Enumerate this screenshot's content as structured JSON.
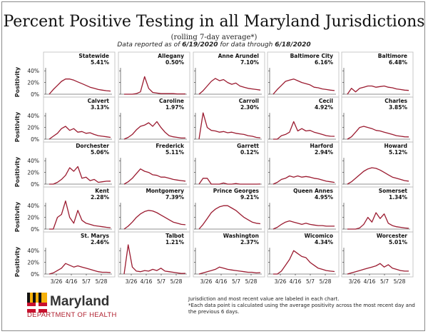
{
  "header": {
    "title": "Percent Positive Testing in all Maryland Jurisdictions",
    "subtitle": "(rolling 7-day average*)",
    "data_line_prefix": "Data reported as of ",
    "reported_date": "6/19/2020",
    "data_line_middle": " for data through ",
    "through_date": "6/18/2020"
  },
  "logo": {
    "word": "Maryland",
    "department": "DEPARTMENT OF HEALTH"
  },
  "footnote": {
    "line1": "Jurisdiction and most recent value are labeled in each chart.",
    "line2": "*Each data point is calculated using the average positivity across the most recent day and the previous 6 days."
  },
  "colors": {
    "line": "#9b1b30",
    "axis": "#222222"
  },
  "chart_data": {
    "type": "line",
    "ylabel": "Positivity",
    "y_ticks": [
      "40%",
      "20%",
      "0%"
    ],
    "ylim": [
      0,
      50
    ],
    "x_ticks": [
      "3/26",
      "4/16",
      "5/7",
      "5/28"
    ],
    "x_tick_positions": [
      0.2,
      0.34,
      0.5,
      0.66
    ],
    "series": [
      {
        "name": "Statewide",
        "latest": "5.41%",
        "values": [
          0,
          8,
          15,
          22,
          26,
          26,
          24,
          21,
          18,
          15,
          12,
          10,
          8,
          7,
          6,
          5.4
        ]
      },
      {
        "name": "Allegany",
        "latest": "0.50%",
        "values": [
          0,
          0,
          0,
          1,
          4,
          30,
          10,
          3,
          2,
          1,
          1,
          1,
          1,
          0.5,
          0.5,
          0.5
        ]
      },
      {
        "name": "Anne Arundel",
        "latest": "7.10%",
        "values": [
          0,
          6,
          14,
          22,
          27,
          23,
          25,
          20,
          17,
          19,
          14,
          12,
          10,
          9,
          8,
          7.1
        ]
      },
      {
        "name": "Baltimore City",
        "latest": "6.16%",
        "values": [
          0,
          8,
          15,
          22,
          24,
          26,
          23,
          20,
          18,
          16,
          12,
          11,
          9,
          8,
          7,
          6.2
        ]
      },
      {
        "name": "Baltimore",
        "latest": "6.48%",
        "values": [
          0,
          10,
          4,
          10,
          12,
          14,
          14,
          12,
          13,
          14,
          12,
          11,
          9,
          8,
          7,
          6.5
        ]
      },
      {
        "name": "Calvert",
        "latest": "3.13%",
        "values": [
          0,
          5,
          10,
          18,
          22,
          15,
          18,
          12,
          13,
          10,
          11,
          8,
          6,
          5,
          4,
          3.1
        ]
      },
      {
        "name": "Caroline",
        "latest": "1.97%",
        "values": [
          0,
          3,
          8,
          16,
          22,
          24,
          28,
          22,
          30,
          20,
          12,
          6,
          4,
          3,
          2,
          2
        ]
      },
      {
        "name": "Carroll",
        "latest": "2.30%",
        "values": [
          0,
          45,
          20,
          15,
          14,
          12,
          13,
          11,
          12,
          10,
          9,
          8,
          6,
          5,
          3,
          2.3
        ]
      },
      {
        "name": "Cecil",
        "latest": "4.92%",
        "values": [
          0,
          0,
          6,
          8,
          12,
          30,
          14,
          18,
          14,
          15,
          12,
          10,
          8,
          6,
          5,
          4.9
        ]
      },
      {
        "name": "Charles",
        "latest": "3.85%",
        "values": [
          0,
          4,
          12,
          20,
          22,
          20,
          18,
          15,
          14,
          12,
          10,
          8,
          6,
          5,
          4,
          3.9
        ]
      },
      {
        "name": "Dorchester",
        "latest": "5.06%",
        "values": [
          0,
          0,
          3,
          8,
          15,
          28,
          22,
          30,
          10,
          12,
          6,
          8,
          3,
          4,
          5,
          5.1
        ]
      },
      {
        "name": "Frederick",
        "latest": "5.11%",
        "values": [
          0,
          4,
          10,
          18,
          26,
          22,
          20,
          16,
          15,
          12,
          12,
          10,
          8,
          7,
          6,
          5.1
        ]
      },
      {
        "name": "Garrett",
        "latest": "0.12%",
        "values": [
          0,
          10,
          10,
          0,
          0,
          0,
          2,
          0,
          0,
          1,
          0,
          0,
          0,
          0,
          0,
          0.1
        ]
      },
      {
        "name": "Harford",
        "latest": "2.94%",
        "values": [
          0,
          3,
          8,
          10,
          14,
          12,
          14,
          12,
          13,
          12,
          10,
          9,
          7,
          5,
          4,
          2.9
        ]
      },
      {
        "name": "Howard",
        "latest": "5.12%",
        "values": [
          0,
          4,
          10,
          16,
          22,
          26,
          28,
          27,
          24,
          20,
          16,
          12,
          10,
          8,
          6,
          5.1
        ]
      },
      {
        "name": "Kent",
        "latest": "2.28%",
        "values": [
          0,
          0,
          20,
          25,
          48,
          20,
          10,
          32,
          15,
          10,
          8,
          6,
          5,
          4,
          3,
          2.3
        ]
      },
      {
        "name": "Montgomery",
        "latest": "7.39%",
        "values": [
          0,
          5,
          12,
          20,
          26,
          30,
          32,
          31,
          28,
          24,
          20,
          16,
          12,
          10,
          8,
          7.4
        ]
      },
      {
        "name": "Prince Georges",
        "latest": "9.21%",
        "values": [
          0,
          8,
          18,
          28,
          34,
          38,
          40,
          40,
          36,
          32,
          26,
          20,
          16,
          12,
          10,
          9.2
        ]
      },
      {
        "name": "Queen Annes",
        "latest": "4.95%",
        "values": [
          0,
          3,
          8,
          12,
          14,
          12,
          10,
          8,
          10,
          8,
          7,
          6,
          6,
          5,
          5,
          5
        ]
      },
      {
        "name": "Somerset",
        "latest": "1.34%",
        "values": [
          0,
          0,
          0,
          2,
          8,
          20,
          12,
          28,
          18,
          26,
          10,
          6,
          4,
          3,
          2,
          1.3
        ]
      },
      {
        "name": "St. Marys",
        "latest": "2.46%",
        "values": [
          0,
          2,
          6,
          10,
          18,
          15,
          12,
          14,
          12,
          10,
          8,
          6,
          4,
          3,
          3,
          2.5
        ]
      },
      {
        "name": "Talbot",
        "latest": "1.21%",
        "values": [
          0,
          50,
          12,
          5,
          4,
          6,
          5,
          8,
          6,
          10,
          5,
          4,
          3,
          2,
          1,
          1.2
        ]
      },
      {
        "name": "Washington",
        "latest": "2.37%",
        "values": [
          0,
          2,
          4,
          6,
          8,
          12,
          10,
          8,
          7,
          6,
          5,
          4,
          3,
          3,
          2,
          2.4
        ]
      },
      {
        "name": "Wicomico",
        "latest": "4.34%",
        "values": [
          0,
          0,
          5,
          15,
          25,
          40,
          35,
          30,
          28,
          20,
          15,
          10,
          8,
          6,
          5,
          4.3
        ]
      },
      {
        "name": "Worcester",
        "latest": "5.01%",
        "values": [
          0,
          2,
          4,
          6,
          8,
          10,
          12,
          14,
          18,
          12,
          16,
          10,
          8,
          6,
          5,
          5
        ]
      }
    ]
  }
}
